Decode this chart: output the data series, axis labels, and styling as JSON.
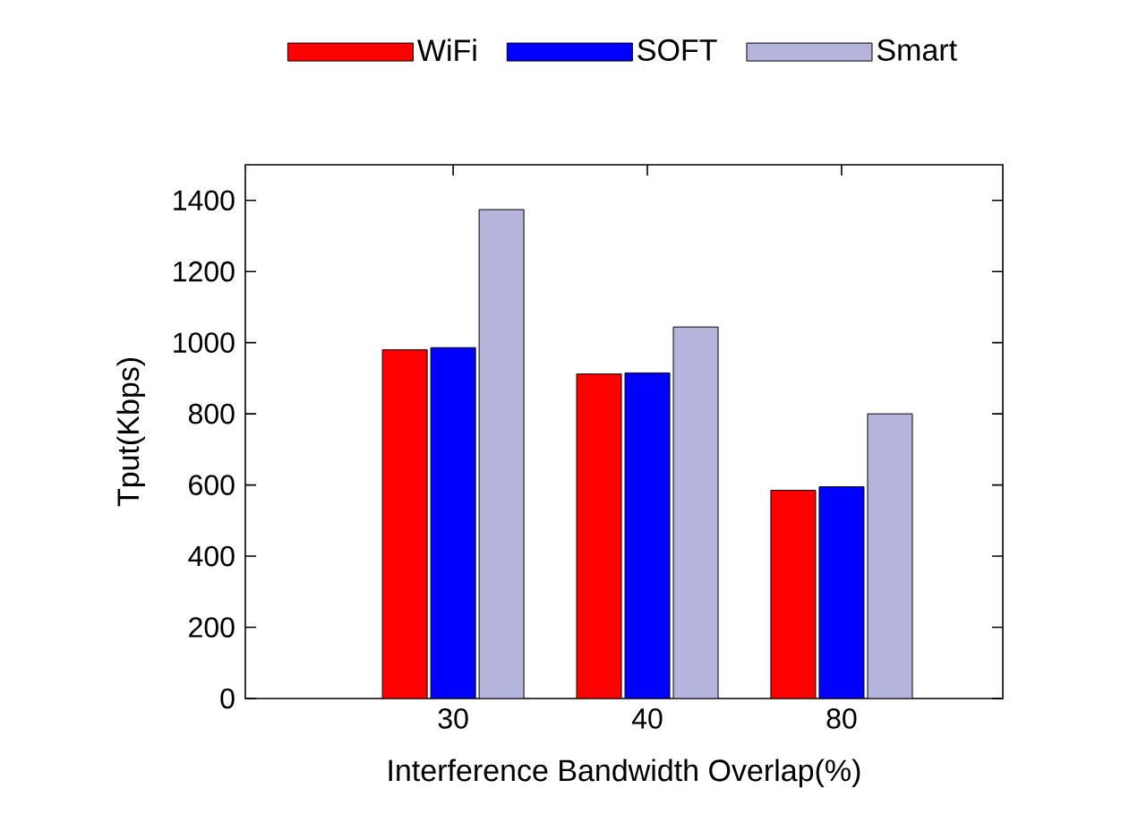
{
  "chart_data": {
    "type": "bar",
    "xlabel": "Interference Bandwidth Overlap(%)",
    "ylabel": "Tput(Kbps)",
    "categories": [
      "30",
      "40",
      "80"
    ],
    "series": [
      {
        "name": "WiFi",
        "color": "#ff0000",
        "values": [
          980,
          912,
          585
        ]
      },
      {
        "name": "SOFT",
        "color": "#0000ff",
        "values": [
          986,
          915,
          595
        ]
      },
      {
        "name": "Smart",
        "color": "#b4b4dc",
        "values": [
          1374,
          1044,
          800
        ]
      }
    ],
    "ylim": [
      0,
      1500
    ],
    "yticks": [
      0,
      200,
      400,
      600,
      800,
      1000,
      1200,
      1400
    ],
    "grid": false,
    "legend": "top"
  }
}
